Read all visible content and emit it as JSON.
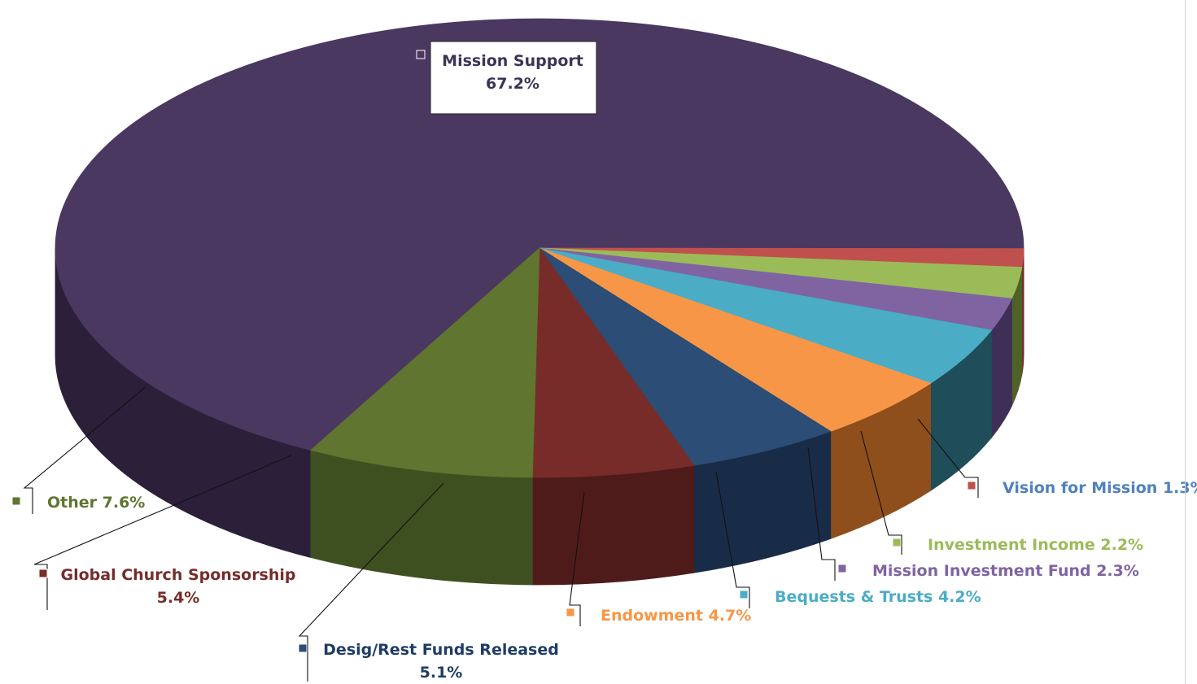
{
  "chart_data": {
    "type": "pie",
    "style": "3d",
    "legend": "none",
    "slices": [
      {
        "label": "Mission Support",
        "text": "Mission Support",
        "value_label": "67.2%",
        "value": 67.2,
        "color": "#4a3860",
        "side_color": "#2b1f3a"
      },
      {
        "label": "Vision for Mission",
        "text": "Vision for Mission 1.3%",
        "value_label": "",
        "value": 1.3,
        "color": "#c0504d",
        "side_color": "#7a2624"
      },
      {
        "label": "Investment Income",
        "text": "Investment Income 2.2%",
        "value_label": "",
        "value": 2.2,
        "color": "#9bbb59",
        "side_color": "#4e6127"
      },
      {
        "label": "Mission Investment Fund",
        "text": "Mission Investment Fund 2.3%",
        "value_label": "",
        "value": 2.3,
        "color": "#8064a2",
        "side_color": "#3f2e56"
      },
      {
        "label": "Bequests & Trusts",
        "text": "Bequests & Trusts 4.2%",
        "value_label": "",
        "value": 4.2,
        "color": "#4bacc6",
        "side_color": "#1f4d5a"
      },
      {
        "label": "Endowment",
        "text": "Endowment 4.7%",
        "value_label": "",
        "value": 4.7,
        "color": "#f79646",
        "side_color": "#8f4f1c"
      },
      {
        "label": "Desig/Rest Funds Released",
        "text": "Desig/Rest  Funds Released",
        "value_label": "5.1%",
        "value": 5.1,
        "color": "#2c4d75",
        "side_color": "#192c47"
      },
      {
        "label": "Global Church Sponsorship",
        "text": "Global Church Sponsorship",
        "value_label": "5.4%",
        "value": 5.4,
        "color": "#772c2a",
        "side_color": "#4f1b1a"
      },
      {
        "label": "Other",
        "text": "Other 7.6%",
        "value_label": "",
        "value": 7.6,
        "color": "#5f7530",
        "side_color": "#3f5020"
      }
    ],
    "label_colors": {
      "Mission Support": "#3d3356",
      "Vision for Mission": "#4f81bd",
      "Investment Income": "#9bbb59",
      "Mission Investment Fund": "#8064a2",
      "Bequests & Trusts": "#4bacc6",
      "Endowment": "#f79646",
      "Desig/Rest Funds Released": "#1f3c66",
      "Global Church Sponsorship": "#772c2a",
      "Other": "#5f7530"
    }
  }
}
